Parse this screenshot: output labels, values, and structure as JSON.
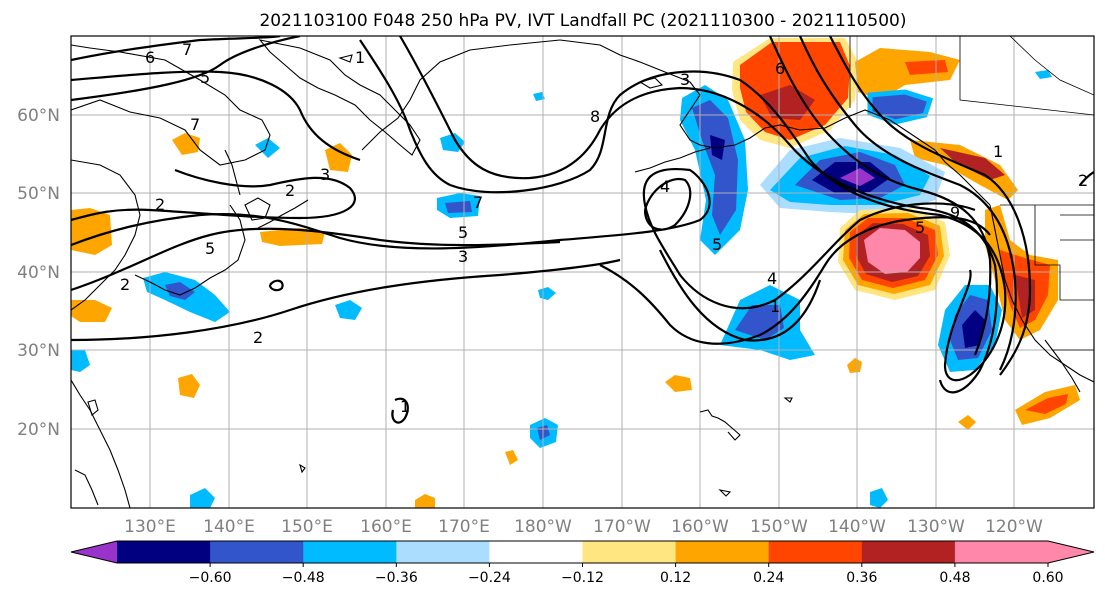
{
  "title": "2021103100 F048 250 hPa PV, IVT Landfall PC (2021110300 - 2021110500)",
  "map": {
    "lat_labels": [
      "60°N",
      "50°N",
      "40°N",
      "30°N",
      "20°N"
    ],
    "lon_labels": [
      "130°E",
      "140°E",
      "150°E",
      "160°E",
      "170°E",
      "180°W",
      "170°W",
      "160°W",
      "150°W",
      "140°W",
      "130°W",
      "120°W"
    ],
    "contour_labels": [
      "7",
      "6",
      "5",
      "7",
      "2",
      "2",
      "5",
      "2",
      "1",
      "3",
      "8",
      "7",
      "5",
      "3",
      "4",
      "5",
      "4",
      "1",
      "6",
      "9",
      "5",
      "1",
      "2",
      "1",
      "3",
      "2"
    ]
  },
  "colorbar": {
    "tick_labels": [
      "−0.60",
      "−0.48",
      "−0.36",
      "−0.24",
      "−0.12",
      "0.12",
      "0.24",
      "0.36",
      "0.48",
      "0.60"
    ],
    "colors": [
      "#9933cc",
      "#000080",
      "#3355cc",
      "#00bbff",
      "#aaddff",
      "#ffffff",
      "#ffe680",
      "#ffa500",
      "#ff4500",
      "#b22222",
      "#ff88aa",
      "#ffffff"
    ]
  }
}
